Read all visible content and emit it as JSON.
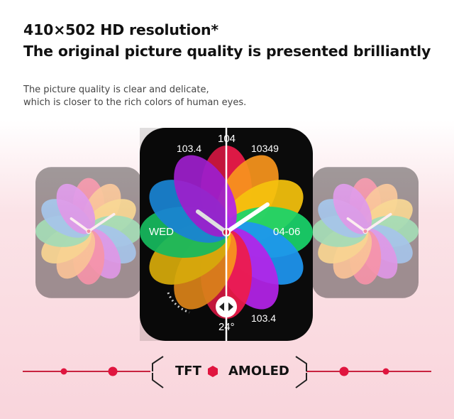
{
  "headline": {
    "line1": "410×502 HD resolution*",
    "line2": "The original picture quality is presented brilliantly"
  },
  "description": {
    "line1": "The picture quality is clear and delicate,",
    "line2": "which is closer to the rich colors of human eyes."
  },
  "watch": {
    "top": "104",
    "top_left": "103.4",
    "top_right": "10349",
    "left": "WED",
    "right": "04-06",
    "bottom_right": "103.4",
    "bottom": "24°",
    "icons": [
      "water-drop-icon",
      "heart-icon",
      "shoe-icon",
      "lightning-icon",
      "location-pin-icon",
      "compare-slider-icon"
    ]
  },
  "comparison": {
    "left_label": "TFT",
    "right_label": "AMOLED"
  },
  "colors": {
    "accent": "#e0153f",
    "petals": [
      "#ee1b4a",
      "#f7941d",
      "#f4c20d",
      "#1ad36b",
      "#1e96f0",
      "#b424e8"
    ]
  }
}
